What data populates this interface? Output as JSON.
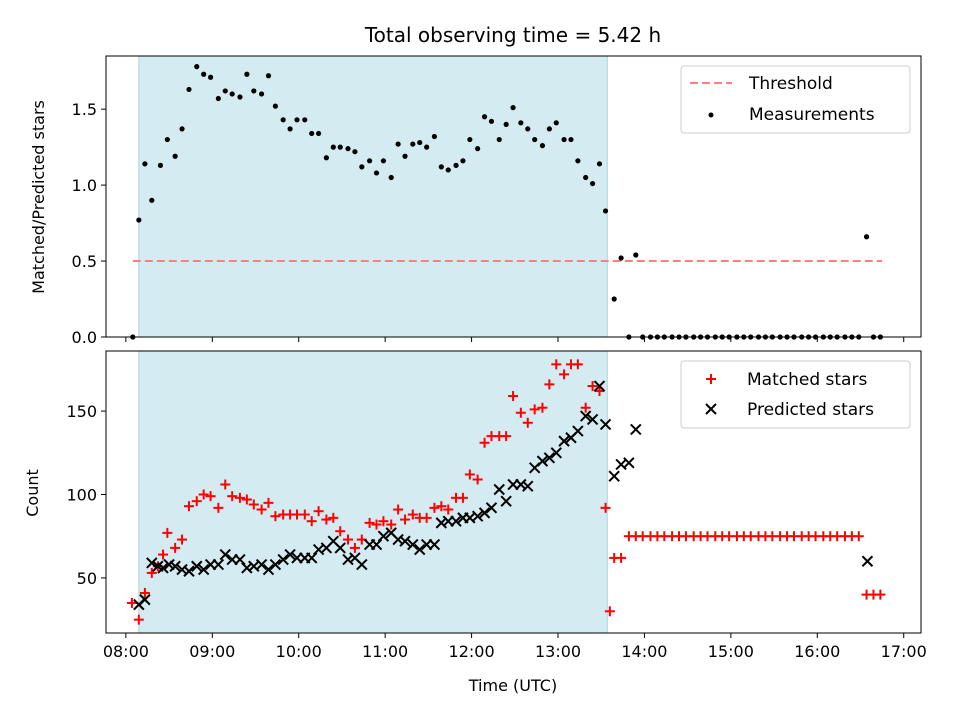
{
  "figure_title": "Total observing time = 5.42 h",
  "colors": {
    "observing_band": "#d4ebf1",
    "observing_band_edge": "#a9d4de",
    "threshold": "#ff7f7f",
    "measurements": "#000000",
    "matched": "#ff0000",
    "predicted": "#000000"
  },
  "chart_data": [
    {
      "type": "scatter",
      "title": "",
      "xlabel": "",
      "ylabel": "Matched/Predicted stars",
      "xlim": [
        7.77,
        17.2
      ],
      "ylim": [
        0,
        1.85
      ],
      "x_ticks": [
        8,
        9,
        10,
        11,
        12,
        13,
        14,
        15,
        16,
        17
      ],
      "y_ticks": [
        0.0,
        0.5,
        1.0,
        1.5
      ],
      "y_tick_labels": [
        "0.0",
        "0.5",
        "1.0",
        "1.5"
      ],
      "legend_position": "top-right",
      "observing_window": [
        8.15,
        13.57
      ],
      "threshold": {
        "name": "Threshold",
        "value": 0.5,
        "x_range": [
          8.08,
          16.75
        ]
      },
      "series": [
        {
          "name": "Measurements",
          "x": [
            8.08,
            8.15,
            8.22,
            8.3,
            8.4,
            8.48,
            8.57,
            8.65,
            8.73,
            8.82,
            8.9,
            8.98,
            9.07,
            9.15,
            9.23,
            9.32,
            9.4,
            9.48,
            9.57,
            9.65,
            9.73,
            9.82,
            9.9,
            9.98,
            10.07,
            10.15,
            10.23,
            10.32,
            10.4,
            10.48,
            10.57,
            10.65,
            10.73,
            10.82,
            10.9,
            10.98,
            11.07,
            11.15,
            11.23,
            11.32,
            11.4,
            11.48,
            11.57,
            11.65,
            11.73,
            11.82,
            11.9,
            11.98,
            12.07,
            12.15,
            12.23,
            12.32,
            12.4,
            12.48,
            12.57,
            12.65,
            12.73,
            12.82,
            12.9,
            12.98,
            13.07,
            13.15,
            13.23,
            13.32,
            13.4,
            13.48,
            13.55,
            13.65,
            13.73,
            13.82,
            13.9,
            13.98,
            14.07,
            14.15,
            14.23,
            14.32,
            14.4,
            14.48,
            14.57,
            14.65,
            14.73,
            14.82,
            14.9,
            14.98,
            15.07,
            15.15,
            15.23,
            15.32,
            15.4,
            15.48,
            15.57,
            15.65,
            15.73,
            15.82,
            15.9,
            15.98,
            16.07,
            16.15,
            16.23,
            16.32,
            16.4,
            16.48,
            16.57,
            16.65,
            16.73
          ],
          "y": [
            0.0,
            0.77,
            1.14,
            0.9,
            1.13,
            1.3,
            1.19,
            1.37,
            1.63,
            1.78,
            1.73,
            1.71,
            1.57,
            1.62,
            1.6,
            1.58,
            1.73,
            1.62,
            1.6,
            1.72,
            1.52,
            1.43,
            1.37,
            1.43,
            1.43,
            1.34,
            1.34,
            1.18,
            1.25,
            1.25,
            1.24,
            1.22,
            1.12,
            1.16,
            1.08,
            1.16,
            1.05,
            1.27,
            1.19,
            1.27,
            1.28,
            1.25,
            1.32,
            1.12,
            1.1,
            1.13,
            1.16,
            1.3,
            1.24,
            1.45,
            1.42,
            1.3,
            1.4,
            1.51,
            1.41,
            1.37,
            1.3,
            1.26,
            1.37,
            1.41,
            1.3,
            1.3,
            1.16,
            1.05,
            1.01,
            1.14,
            0.83,
            0.25,
            0.52,
            0.0,
            0.54,
            0.0,
            0.0,
            0.0,
            0.0,
            0.0,
            0.0,
            0.0,
            0.0,
            0.0,
            0.0,
            0.0,
            0.0,
            0.0,
            0.0,
            0.0,
            0.0,
            0.0,
            0.0,
            0.0,
            0.0,
            0.0,
            0.0,
            0.0,
            0.0,
            0.0,
            0.0,
            0.0,
            0.0,
            0.0,
            0.0,
            0.0,
            0.66,
            0.0,
            0.0
          ]
        }
      ]
    },
    {
      "type": "scatter",
      "title": "",
      "xlabel": "Time (UTC)",
      "ylabel": "Count",
      "xlim": [
        7.77,
        17.2
      ],
      "ylim": [
        17,
        186
      ],
      "x_ticks": [
        8,
        9,
        10,
        11,
        12,
        13,
        14,
        15,
        16,
        17
      ],
      "x_tick_labels": [
        "08:00",
        "09:00",
        "10:00",
        "11:00",
        "12:00",
        "13:00",
        "14:00",
        "15:00",
        "16:00",
        "17:00"
      ],
      "y_ticks": [
        50,
        100,
        150
      ],
      "y_tick_labels": [
        "50",
        "100",
        "150"
      ],
      "legend_position": "top-right",
      "observing_window": [
        8.15,
        13.57
      ],
      "series": [
        {
          "name": "Matched stars",
          "marker": "plus",
          "x": [
            8.07,
            8.15,
            8.22,
            8.3,
            8.37,
            8.43,
            8.48,
            8.57,
            8.65,
            8.73,
            8.82,
            8.9,
            8.98,
            9.07,
            9.15,
            9.23,
            9.32,
            9.4,
            9.48,
            9.57,
            9.65,
            9.73,
            9.82,
            9.9,
            9.98,
            10.07,
            10.15,
            10.23,
            10.32,
            10.4,
            10.48,
            10.57,
            10.65,
            10.73,
            10.82,
            10.9,
            10.98,
            11.07,
            11.15,
            11.23,
            11.32,
            11.4,
            11.48,
            11.57,
            11.65,
            11.73,
            11.82,
            11.9,
            11.98,
            12.07,
            12.15,
            12.23,
            12.32,
            12.4,
            12.48,
            12.57,
            12.65,
            12.73,
            12.82,
            12.9,
            12.98,
            13.07,
            13.15,
            13.23,
            13.32,
            13.4,
            13.48,
            13.55,
            13.6,
            13.65,
            13.73,
            13.82,
            13.9,
            13.98,
            14.07,
            14.15,
            14.23,
            14.32,
            14.4,
            14.48,
            14.57,
            14.65,
            14.73,
            14.82,
            14.9,
            14.98,
            15.07,
            15.15,
            15.23,
            15.32,
            15.4,
            15.48,
            15.57,
            15.65,
            15.73,
            15.82,
            15.9,
            15.98,
            16.07,
            16.15,
            16.23,
            16.32,
            16.4,
            16.48,
            16.57,
            16.65,
            16.73
          ],
          "y": [
            35,
            25,
            41,
            53,
            57,
            64,
            77,
            68,
            73,
            93,
            96,
            100,
            99,
            92,
            106,
            99,
            98,
            97,
            94,
            91,
            95,
            87,
            88,
            88,
            88,
            88,
            84,
            90,
            85,
            86,
            78,
            73,
            68,
            73,
            83,
            82,
            84,
            82,
            91,
            85,
            88,
            86,
            86,
            92,
            93,
            91,
            98,
            98,
            112,
            109,
            131,
            135,
            135,
            135,
            159,
            149,
            143,
            151,
            152,
            166,
            178,
            172,
            178,
            178,
            152,
            165,
            162,
            92,
            30,
            62,
            62,
            75,
            75,
            75,
            75,
            75,
            75,
            75,
            75,
            75,
            75,
            75,
            75,
            75,
            75,
            75,
            75,
            75,
            75,
            75,
            75,
            75,
            75,
            75,
            75,
            75,
            75,
            75,
            75,
            75,
            75,
            75,
            75,
            75,
            40,
            40,
            40
          ]
        },
        {
          "name": "Predicted stars",
          "marker": "x",
          "x": [
            8.15,
            8.22,
            8.3,
            8.37,
            8.43,
            8.5,
            8.57,
            8.65,
            8.73,
            8.82,
            8.9,
            8.98,
            9.07,
            9.15,
            9.23,
            9.32,
            9.4,
            9.48,
            9.57,
            9.65,
            9.73,
            9.82,
            9.9,
            9.98,
            10.07,
            10.15,
            10.23,
            10.32,
            10.4,
            10.48,
            10.57,
            10.65,
            10.73,
            10.82,
            10.9,
            10.98,
            11.07,
            11.15,
            11.23,
            11.32,
            11.4,
            11.48,
            11.57,
            11.65,
            11.73,
            11.82,
            11.9,
            11.98,
            12.07,
            12.15,
            12.23,
            12.32,
            12.4,
            12.48,
            12.57,
            12.65,
            12.73,
            12.82,
            12.9,
            12.98,
            13.07,
            13.15,
            13.23,
            13.32,
            13.4,
            13.48,
            13.55,
            13.65,
            13.73,
            13.82,
            13.9,
            16.58
          ],
          "y": [
            34,
            37,
            59,
            57,
            56,
            58,
            57,
            55,
            54,
            57,
            55,
            58,
            58,
            64,
            61,
            61,
            56,
            57,
            58,
            55,
            58,
            61,
            64,
            62,
            62,
            62,
            67,
            68,
            72,
            68,
            61,
            62,
            58,
            70,
            70,
            75,
            77,
            73,
            72,
            70,
            67,
            70,
            70,
            83,
            84,
            84,
            86,
            86,
            87,
            89,
            92,
            103,
            96,
            106,
            106,
            105,
            116,
            120,
            122,
            125,
            132,
            134,
            138,
            147,
            145,
            165,
            142,
            111,
            118,
            119,
            139,
            60
          ]
        }
      ]
    }
  ]
}
